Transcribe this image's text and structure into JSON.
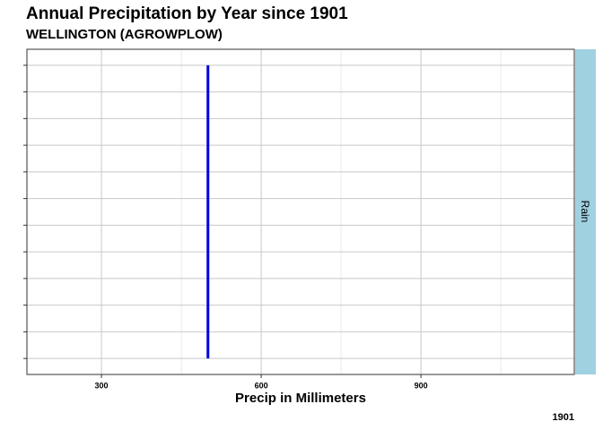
{
  "chart_data": {
    "type": "line",
    "orientation": "horizontal",
    "title": "Annual Precipitation by Year since 1901",
    "subtitle": "WELLINGTON (AGROWPLOW)",
    "x_label": "Precip in Millimeters",
    "caption": "1901",
    "facet": "Rain",
    "categories": [
      null,
      null,
      null,
      null,
      null,
      null,
      null,
      null,
      null,
      null,
      null,
      null
    ],
    "series": [
      {
        "color": "#0000dd",
        "values": [
          500,
          500,
          500,
          500,
          500,
          500,
          500,
          500,
          500,
          500,
          500,
          500
        ]
      }
    ],
    "xlim": [
      160,
      1188
    ],
    "xticks": [
      300,
      600,
      900
    ],
    "xminor": [
      450,
      750,
      1050
    ],
    "grid": true
  }
}
